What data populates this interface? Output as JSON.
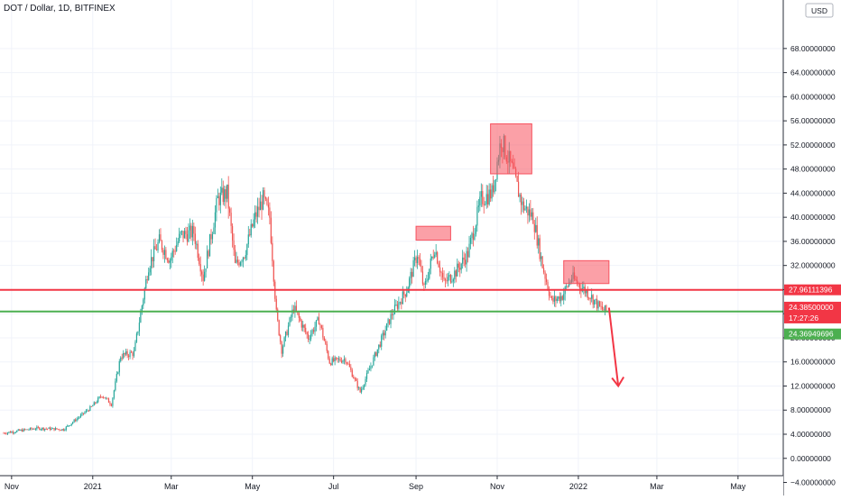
{
  "header": {
    "symbol": "DOT / Dollar, 1D, BITFINEX"
  },
  "currency_badge": "USD",
  "colors": {
    "up": "#26a69a",
    "down": "#ef5350",
    "resistance_line": "#f23645",
    "support_line": "#4caf50",
    "zone_fill": "#f7525f",
    "arrow": "#f23645",
    "grid": "#f0f3fa",
    "axis_text": "#131722"
  },
  "chart_data": {
    "type": "candlestick",
    "symbol": "DOT / Dollar",
    "interval": "1D",
    "exchange": "BITFINEX",
    "x_ticks": [
      "Nov",
      "2021",
      "Mar",
      "May",
      "Jul",
      "Sep",
      "Nov",
      "2022",
      "Mar",
      "May"
    ],
    "y_ticks": [
      "68.00000000",
      "64.00000000",
      "60.00000000",
      "56.00000000",
      "52.00000000",
      "48.00000000",
      "44.00000000",
      "40.00000000",
      "36.00000000",
      "32.00000000",
      "28.00000000",
      "24.00000000",
      "20.00000000",
      "16.00000000",
      "12.00000000",
      "8.00000000",
      "4.00000000",
      "0.00000000",
      "−4.00000000",
      "−8.00000000"
    ],
    "ylim": [
      -8,
      70
    ],
    "grid": true,
    "price_path": [
      [
        "Oct 26 2020",
        4.2
      ],
      [
        "Nov 20 2020",
        5.0
      ],
      [
        "Dec 10 2020",
        4.8
      ],
      [
        "Dec 31 2020",
        8.5
      ],
      [
        "Jan 8 2021",
        10.5
      ],
      [
        "Jan 15 2021",
        9.0
      ],
      [
        "Jan 22 2021",
        17.0
      ],
      [
        "Feb 1 2021",
        17.5
      ],
      [
        "Feb 12 2021",
        32.0
      ],
      [
        "Feb 20 2021",
        36.0
      ],
      [
        "Feb 28 2021",
        33.0
      ],
      [
        "Mar 8 2021",
        37.0
      ],
      [
        "Mar 18 2021",
        37.5
      ],
      [
        "Mar 25 2021",
        30.0
      ],
      [
        "Apr 5 2021",
        43.0
      ],
      [
        "Apr 12 2021",
        44.0
      ],
      [
        "Apr 18 2021",
        32.0
      ],
      [
        "Apr 25 2021",
        34.0
      ],
      [
        "May 3 2021",
        40.0
      ],
      [
        "May 9 2021",
        43.0
      ],
      [
        "May 14 2021",
        40.0
      ],
      [
        "May 19 2021",
        24.0
      ],
      [
        "May 23 2021",
        18.0
      ],
      [
        "Jun 1 2021",
        25.0
      ],
      [
        "Jun 12 2021",
        20.0
      ],
      [
        "Jun 20 2021",
        23.0
      ],
      [
        "Jun 28 2021",
        16.0
      ],
      [
        "Jul 10 2021",
        16.5
      ],
      [
        "Jul 21 2021",
        11.0
      ],
      [
        "Aug 1 2021",
        17.0
      ],
      [
        "Aug 14 2021",
        24.0
      ],
      [
        "Aug 25 2021",
        28.0
      ],
      [
        "Sep 2 2021",
        34.0
      ],
      [
        "Sep 7 2021",
        28.0
      ],
      [
        "Sep 15 2021",
        35.0
      ],
      [
        "Sep 22 2021",
        29.0
      ],
      [
        "Oct 1 2021",
        31.0
      ],
      [
        "Oct 10 2021",
        34.0
      ],
      [
        "Oct 20 2021",
        43.0
      ],
      [
        "Oct 28 2021",
        44.0
      ],
      [
        "Nov 4 2021",
        53.0
      ],
      [
        "Nov 12 2021",
        48.0
      ],
      [
        "Nov 20 2021",
        42.0
      ],
      [
        "Nov 28 2021",
        40.0
      ],
      [
        "Dec 5 2021",
        32.0
      ],
      [
        "Dec 12 2021",
        26.0
      ],
      [
        "Dec 20 2021",
        27.0
      ],
      [
        "Dec 27 2021",
        30.0
      ],
      [
        "Jan 3 2022",
        28.5
      ],
      [
        "Jan 10 2022",
        27.0
      ],
      [
        "Jan 17 2022",
        25.0
      ],
      [
        "Jan 22 2022",
        24.385
      ]
    ],
    "horizontal_lines": [
      {
        "name": "resistance",
        "value": 27.96111396
      },
      {
        "name": "support",
        "value": 24.36949696
      }
    ],
    "zones": [
      {
        "start": "Sep 1 2021",
        "end": "Sep 27 2021",
        "low": 36.2,
        "high": 38.5
      },
      {
        "start": "Oct 27 2021",
        "end": "Nov 27 2021",
        "low": 47.2,
        "high": 55.5
      },
      {
        "start": "Dec 21 2021",
        "end": "Jan 24 2022",
        "low": 29.0,
        "high": 32.8
      }
    ],
    "projection_arrow": {
      "from": [
        "Jan 24 2022",
        25.0
      ],
      "to": [
        "Jan 31 2022",
        12.0
      ]
    },
    "last_price_label": "24.38500000",
    "countdown_label": "17:27:26",
    "resistance_label": "27.96111396",
    "support_label": "24.36949696"
  }
}
